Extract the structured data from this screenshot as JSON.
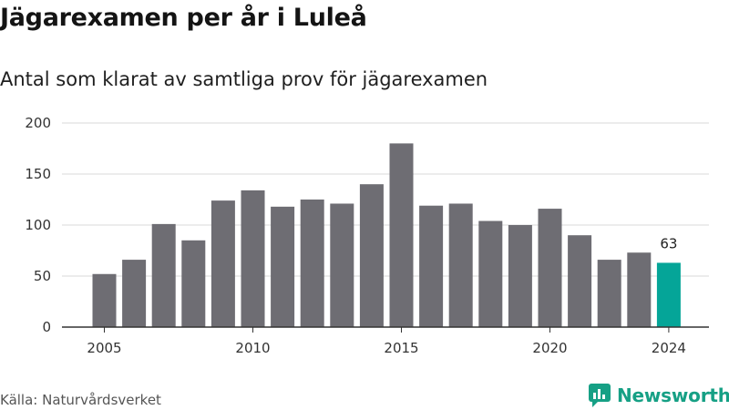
{
  "header": {
    "title": "Jägarexamen per år i Luleå",
    "subtitle": "Antal som klarat av samtliga prov för jägarexamen"
  },
  "footer": {
    "source": "Källa: Naturvårdsverket",
    "brand": "Newsworthy"
  },
  "colors": {
    "bar": "#6e6d73",
    "highlight": "#05a598",
    "brand": "#16a085"
  },
  "chart_data": {
    "type": "bar",
    "categories": [
      "2005",
      "2006",
      "2007",
      "2008",
      "2009",
      "2010",
      "2011",
      "2012",
      "2013",
      "2014",
      "2015",
      "2016",
      "2017",
      "2018",
      "2019",
      "2020",
      "2021",
      "2022",
      "2023",
      "2024"
    ],
    "values": [
      52,
      66,
      101,
      85,
      124,
      134,
      118,
      125,
      121,
      140,
      180,
      119,
      121,
      104,
      100,
      116,
      90,
      66,
      73,
      63
    ],
    "highlight_index": 19,
    "data_labels": [
      {
        "index": 19,
        "text": "63"
      }
    ],
    "xticks": [
      "2005",
      "2010",
      "2015",
      "2020",
      "2024"
    ],
    "yticks": [
      "0",
      "50",
      "100",
      "150",
      "200"
    ],
    "ylim": [
      0,
      200
    ],
    "grid": "horizontal",
    "title": "Jägarexamen per år i Luleå",
    "subtitle": "Antal som klarat av samtliga prov för jägarexamen"
  }
}
